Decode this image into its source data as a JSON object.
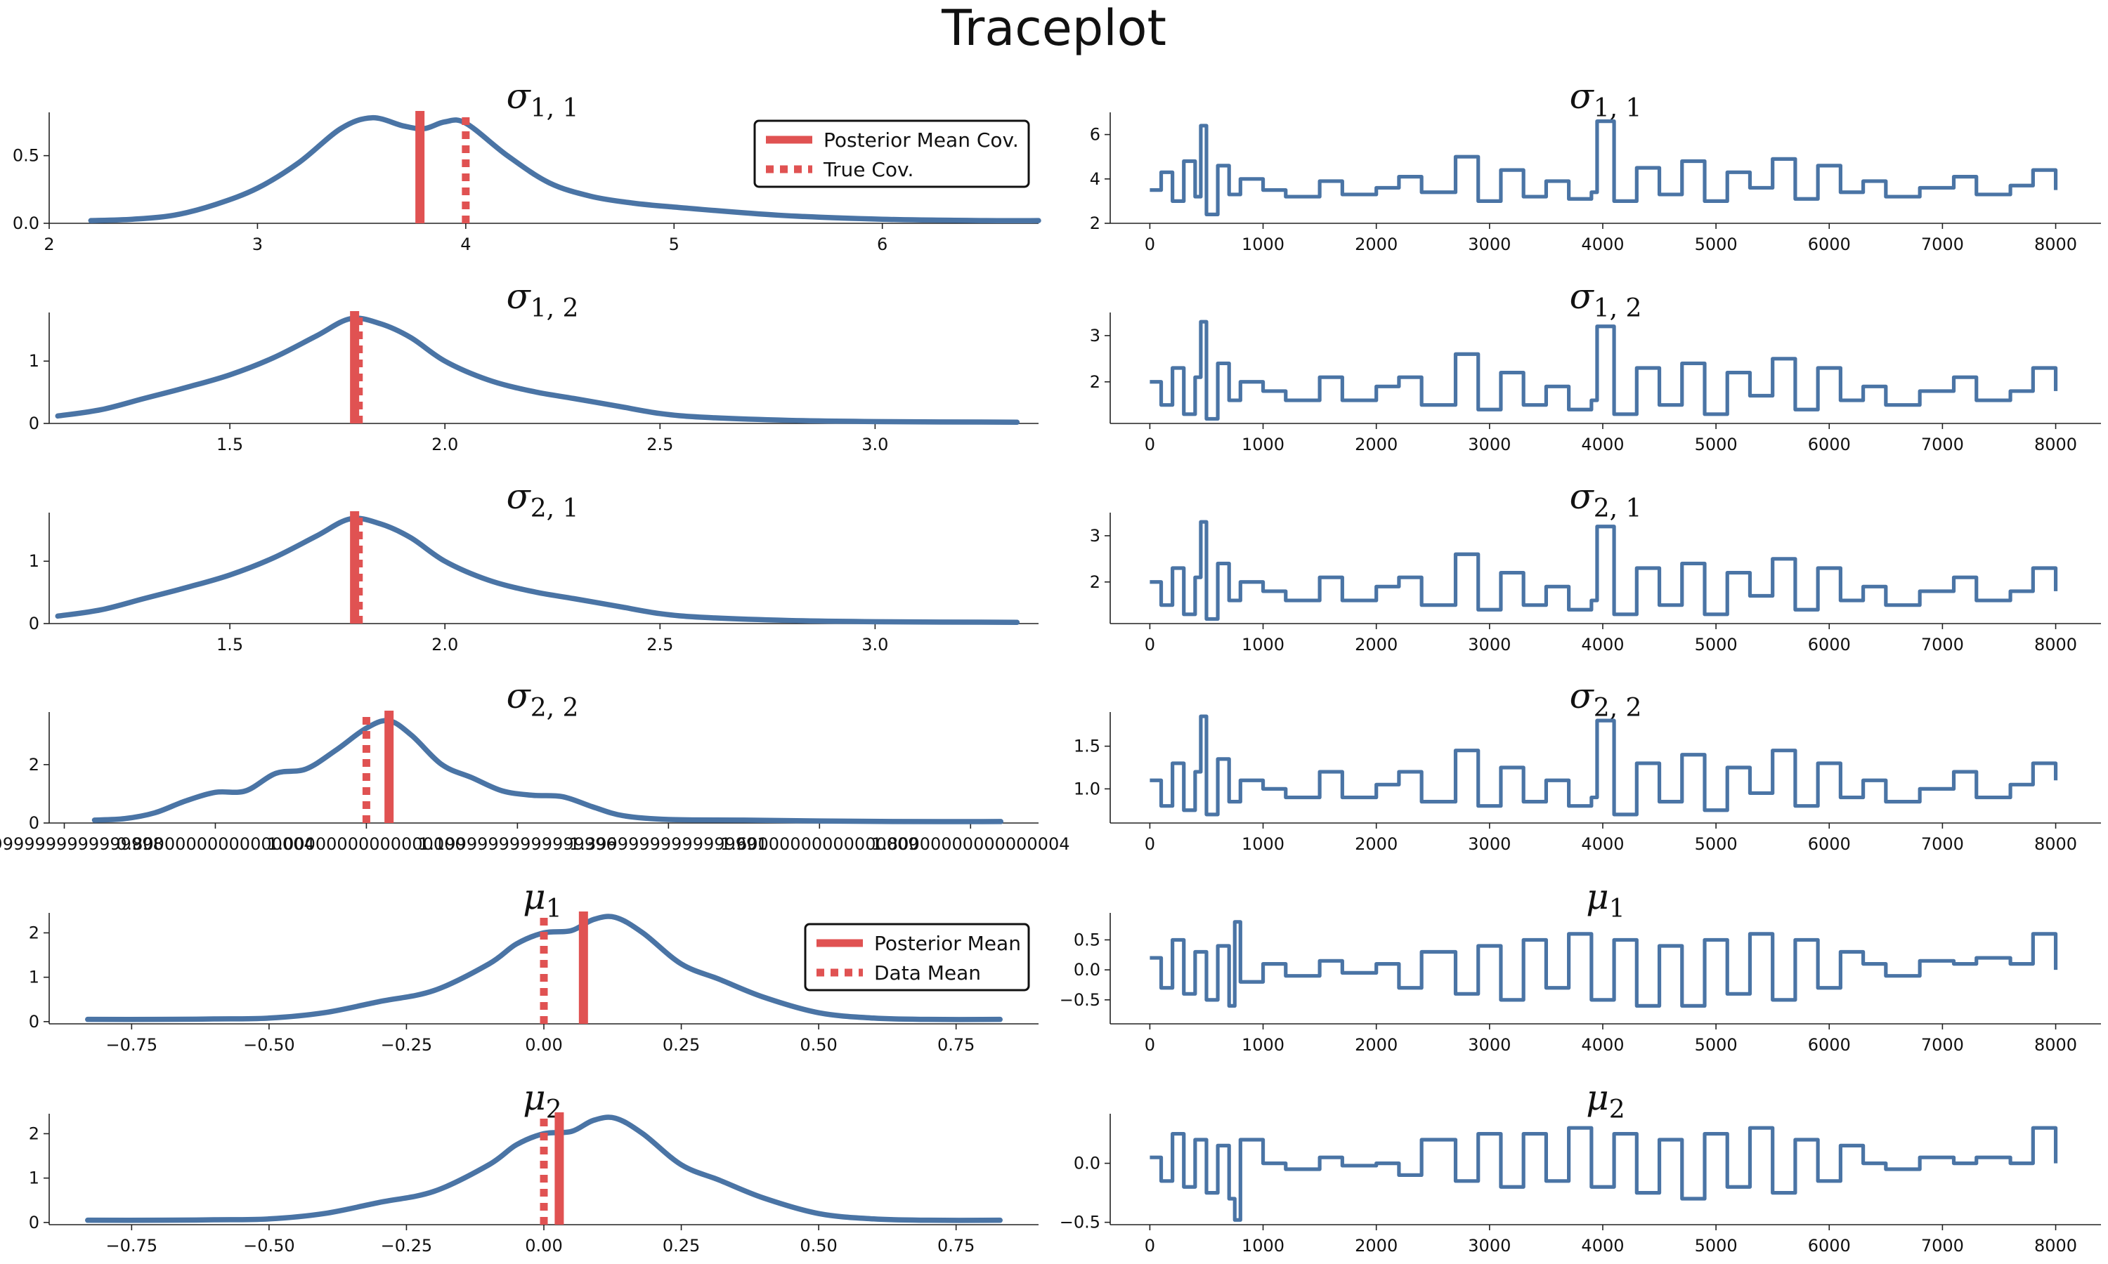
{
  "figure": {
    "title": "Traceplot",
    "colors": {
      "density": "#4a74a5",
      "trace": "#4a74a5",
      "reference": "#e05252"
    }
  },
  "chart_data": [
    {
      "type": "line",
      "title": "σ_{1,1}",
      "title_main": "σ",
      "title_sub": "1, 1",
      "xlim": [
        2.0,
        6.75
      ],
      "ylim": [
        0.0,
        0.82
      ],
      "xticks": [
        2,
        3,
        4,
        5,
        6
      ],
      "yticks": [
        0.0,
        0.5
      ],
      "x": [
        2.2,
        2.4,
        2.6,
        2.8,
        3.0,
        3.2,
        3.4,
        3.55,
        3.7,
        3.8,
        3.9,
        4.0,
        4.2,
        4.4,
        4.6,
        4.8,
        5.0,
        5.5,
        6.0,
        6.5,
        6.75
      ],
      "y": [
        0.02,
        0.03,
        0.06,
        0.14,
        0.26,
        0.45,
        0.7,
        0.78,
        0.72,
        0.7,
        0.75,
        0.74,
        0.5,
        0.3,
        0.2,
        0.15,
        0.12,
        0.06,
        0.03,
        0.02,
        0.02
      ],
      "reference_lines": [
        {
          "name": "Posterior Mean Cov.",
          "x": 3.78,
          "style": "solid"
        },
        {
          "name": "True Cov.",
          "x": 4.0,
          "style": "dotted"
        }
      ],
      "legend": [
        "Posterior Mean Cov.",
        "True Cov."
      ],
      "legend_position": "upper right",
      "grid": false
    },
    {
      "type": "line",
      "title": "σ_{1,2}",
      "title_main": "σ",
      "title_sub": "1, 2",
      "xlim": [
        1.08,
        3.38
      ],
      "ylim": [
        0.0,
        1.78
      ],
      "xticks": [
        1.5,
        2.0,
        2.5,
        3.0
      ],
      "yticks": [
        0,
        1
      ],
      "x": [
        1.1,
        1.2,
        1.3,
        1.4,
        1.5,
        1.6,
        1.7,
        1.78,
        1.85,
        1.92,
        2.0,
        2.1,
        2.2,
        2.3,
        2.4,
        2.5,
        2.6,
        2.8,
        3.0,
        3.33
      ],
      "y": [
        0.12,
        0.22,
        0.4,
        0.58,
        0.78,
        1.05,
        1.4,
        1.68,
        1.6,
        1.38,
        1.0,
        0.7,
        0.52,
        0.4,
        0.28,
        0.16,
        0.1,
        0.05,
        0.03,
        0.02
      ],
      "reference_lines": [
        {
          "name": "Posterior Mean Cov.",
          "x": 1.79,
          "style": "solid"
        },
        {
          "name": "True Cov.",
          "x": 1.8,
          "style": "dotted"
        }
      ],
      "grid": false
    },
    {
      "type": "line",
      "title": "σ_{2,1}",
      "title_main": "σ",
      "title_sub": "2, 1",
      "xlim": [
        1.08,
        3.38
      ],
      "ylim": [
        0.0,
        1.78
      ],
      "xticks": [
        1.5,
        2.0,
        2.5,
        3.0
      ],
      "yticks": [
        0,
        1
      ],
      "x": [
        1.1,
        1.2,
        1.3,
        1.4,
        1.5,
        1.6,
        1.7,
        1.78,
        1.85,
        1.92,
        2.0,
        2.1,
        2.2,
        2.3,
        2.4,
        2.5,
        2.6,
        2.8,
        3.0,
        3.33
      ],
      "y": [
        0.12,
        0.22,
        0.4,
        0.58,
        0.78,
        1.05,
        1.4,
        1.68,
        1.6,
        1.38,
        1.0,
        0.7,
        0.52,
        0.4,
        0.28,
        0.16,
        0.1,
        0.05,
        0.03,
        0.02
      ],
      "reference_lines": [
        {
          "name": "Posterior Mean Cov.",
          "x": 1.79,
          "style": "solid"
        },
        {
          "name": "True Cov.",
          "x": 1.8,
          "style": "dotted"
        }
      ],
      "grid": false
    },
    {
      "type": "line",
      "title": "σ_{2,2}",
      "title_main": "σ",
      "title_sub": "2, 2",
      "xlim": [
        0.58,
        1.89
      ],
      "ylim": [
        0.0,
        3.8
      ],
      "xticks": [
        0.6,
        0.8,
        1.0,
        1.2,
        1.4,
        1.6,
        1.8
      ],
      "yticks": [
        0,
        2
      ],
      "x": [
        0.64,
        0.68,
        0.72,
        0.76,
        0.8,
        0.84,
        0.88,
        0.92,
        0.96,
        1.0,
        1.03,
        1.06,
        1.1,
        1.14,
        1.18,
        1.22,
        1.26,
        1.3,
        1.34,
        1.4,
        1.5,
        1.6,
        1.7,
        1.84
      ],
      "y": [
        0.1,
        0.15,
        0.35,
        0.75,
        1.05,
        1.1,
        1.7,
        1.85,
        2.5,
        3.25,
        3.5,
        3.0,
        2.0,
        1.55,
        1.1,
        0.95,
        0.9,
        0.55,
        0.25,
        0.12,
        0.1,
        0.07,
        0.05,
        0.05
      ],
      "reference_lines": [
        {
          "name": "Posterior Mean Cov.",
          "x": 1.03,
          "style": "solid"
        },
        {
          "name": "True Cov.",
          "x": 1.0,
          "style": "dotted"
        }
      ],
      "grid": false
    },
    {
      "type": "line",
      "title": "μ_1",
      "title_main": "μ",
      "title_sub": "1",
      "xlim": [
        -0.9,
        0.9
      ],
      "ylim": [
        -0.05,
        2.45
      ],
      "xticks": [
        -0.75,
        -0.5,
        -0.25,
        0.0,
        0.25,
        0.5,
        0.75
      ],
      "yticks": [
        0,
        1,
        2
      ],
      "x": [
        -0.83,
        -0.7,
        -0.6,
        -0.5,
        -0.4,
        -0.3,
        -0.2,
        -0.1,
        -0.05,
        0.0,
        0.05,
        0.09,
        0.13,
        0.18,
        0.25,
        0.32,
        0.4,
        0.5,
        0.6,
        0.7,
        0.83
      ],
      "y": [
        0.05,
        0.05,
        0.06,
        0.08,
        0.2,
        0.45,
        0.7,
        1.3,
        1.75,
        2.0,
        2.05,
        2.3,
        2.35,
        2.0,
        1.3,
        0.95,
        0.55,
        0.2,
        0.08,
        0.05,
        0.05
      ],
      "reference_lines": [
        {
          "name": "Posterior Mean",
          "x": 0.072,
          "style": "solid"
        },
        {
          "name": "Data Mean",
          "x": 0.0,
          "style": "dotted"
        }
      ],
      "legend": [
        "Posterior Mean",
        "Data Mean"
      ],
      "legend_position": "upper right",
      "grid": false
    },
    {
      "type": "line",
      "title": "μ_2",
      "title_main": "μ",
      "title_sub": "2",
      "xlim": [
        -0.9,
        0.9
      ],
      "ylim": [
        -0.05,
        2.45
      ],
      "xticks": [
        -0.75,
        -0.5,
        -0.25,
        0.0,
        0.25,
        0.5,
        0.75
      ],
      "yticks": [
        0,
        1,
        2
      ],
      "x": [
        -0.83,
        -0.7,
        -0.6,
        -0.5,
        -0.4,
        -0.3,
        -0.2,
        -0.1,
        -0.05,
        0.0,
        0.05,
        0.09,
        0.13,
        0.18,
        0.25,
        0.32,
        0.4,
        0.5,
        0.6,
        0.7,
        0.83
      ],
      "y": [
        0.05,
        0.05,
        0.06,
        0.08,
        0.2,
        0.45,
        0.7,
        1.3,
        1.75,
        2.0,
        2.05,
        2.3,
        2.35,
        2.0,
        1.3,
        0.95,
        0.55,
        0.2,
        0.08,
        0.05,
        0.05
      ],
      "reference_lines": [
        {
          "name": "Posterior Mean",
          "x": 0.028,
          "style": "solid"
        },
        {
          "name": "Data Mean",
          "x": 0.0,
          "style": "dotted"
        }
      ],
      "grid": false
    },
    {
      "type": "line",
      "title": "σ_{1,1}",
      "title_main": "σ",
      "title_sub": "1, 1",
      "xlim": [
        -350,
        8400
      ],
      "ylim": [
        2.0,
        7.0
      ],
      "xticks": [
        0,
        1000,
        2000,
        3000,
        4000,
        5000,
        6000,
        7000,
        8000
      ],
      "yticks": [
        2,
        4,
        6
      ],
      "x": [
        0,
        100,
        200,
        300,
        400,
        450,
        500,
        600,
        700,
        800,
        1000,
        1200,
        1500,
        1700,
        2000,
        2200,
        2400,
        2700,
        2900,
        3100,
        3300,
        3500,
        3700,
        3900,
        3950,
        4100,
        4300,
        4500,
        4700,
        4900,
        5100,
        5300,
        5500,
        5700,
        5900,
        6100,
        6300,
        6500,
        6800,
        7100,
        7300,
        7600,
        7800,
        8000
      ],
      "y": [
        3.5,
        4.3,
        3.0,
        4.8,
        3.2,
        6.4,
        2.4,
        4.6,
        3.3,
        4.0,
        3.5,
        3.2,
        3.9,
        3.3,
        3.6,
        4.1,
        3.4,
        5.0,
        3.0,
        4.4,
        3.2,
        3.9,
        3.1,
        3.4,
        6.6,
        3.0,
        4.5,
        3.3,
        4.8,
        3.0,
        4.3,
        3.6,
        4.9,
        3.1,
        4.6,
        3.4,
        3.9,
        3.2,
        3.6,
        4.1,
        3.3,
        3.7,
        4.4,
        3.5
      ],
      "grid": false
    },
    {
      "type": "line",
      "title": "σ_{1,2}",
      "title_main": "σ",
      "title_sub": "1, 2",
      "xlim": [
        -350,
        8400
      ],
      "ylim": [
        1.1,
        3.5
      ],
      "xticks": [
        0,
        1000,
        2000,
        3000,
        4000,
        5000,
        6000,
        7000,
        8000
      ],
      "yticks": [
        2,
        3
      ],
      "x": [
        0,
        100,
        200,
        300,
        400,
        450,
        500,
        600,
        700,
        800,
        1000,
        1200,
        1500,
        1700,
        2000,
        2200,
        2400,
        2700,
        2900,
        3100,
        3300,
        3500,
        3700,
        3900,
        3950,
        4100,
        4300,
        4500,
        4700,
        4900,
        5100,
        5300,
        5500,
        5700,
        5900,
        6100,
        6300,
        6500,
        6800,
        7100,
        7300,
        7600,
        7800,
        8000
      ],
      "y": [
        2.0,
        1.5,
        2.3,
        1.3,
        2.1,
        3.3,
        1.2,
        2.4,
        1.6,
        2.0,
        1.8,
        1.6,
        2.1,
        1.6,
        1.9,
        2.1,
        1.5,
        2.6,
        1.4,
        2.2,
        1.5,
        1.9,
        1.4,
        1.6,
        3.2,
        1.3,
        2.3,
        1.5,
        2.4,
        1.3,
        2.2,
        1.7,
        2.5,
        1.4,
        2.3,
        1.6,
        1.9,
        1.5,
        1.8,
        2.1,
        1.6,
        1.8,
        2.3,
        1.8
      ],
      "grid": false
    },
    {
      "type": "line",
      "title": "σ_{2,1}",
      "title_main": "σ",
      "title_sub": "2, 1",
      "xlim": [
        -350,
        8400
      ],
      "ylim": [
        1.1,
        3.5
      ],
      "xticks": [
        0,
        1000,
        2000,
        3000,
        4000,
        5000,
        6000,
        7000,
        8000
      ],
      "yticks": [
        2,
        3
      ],
      "x": [
        0,
        100,
        200,
        300,
        400,
        450,
        500,
        600,
        700,
        800,
        1000,
        1200,
        1500,
        1700,
        2000,
        2200,
        2400,
        2700,
        2900,
        3100,
        3300,
        3500,
        3700,
        3900,
        3950,
        4100,
        4300,
        4500,
        4700,
        4900,
        5100,
        5300,
        5500,
        5700,
        5900,
        6100,
        6300,
        6500,
        6800,
        7100,
        7300,
        7600,
        7800,
        8000
      ],
      "y": [
        2.0,
        1.5,
        2.3,
        1.3,
        2.1,
        3.3,
        1.2,
        2.4,
        1.6,
        2.0,
        1.8,
        1.6,
        2.1,
        1.6,
        1.9,
        2.1,
        1.5,
        2.6,
        1.4,
        2.2,
        1.5,
        1.9,
        1.4,
        1.6,
        3.2,
        1.3,
        2.3,
        1.5,
        2.4,
        1.3,
        2.2,
        1.7,
        2.5,
        1.4,
        2.3,
        1.6,
        1.9,
        1.5,
        1.8,
        2.1,
        1.6,
        1.8,
        2.3,
        1.8
      ],
      "grid": false
    },
    {
      "type": "line",
      "title": "σ_{2,2}",
      "title_main": "σ",
      "title_sub": "2, 2",
      "xlim": [
        -350,
        8400
      ],
      "ylim": [
        0.6,
        1.9
      ],
      "xticks": [
        0,
        1000,
        2000,
        3000,
        4000,
        5000,
        6000,
        7000,
        8000
      ],
      "yticks": [
        1.0,
        1.5
      ],
      "x": [
        0,
        100,
        200,
        300,
        400,
        450,
        500,
        600,
        700,
        800,
        1000,
        1200,
        1500,
        1700,
        2000,
        2200,
        2400,
        2700,
        2900,
        3100,
        3300,
        3500,
        3700,
        3900,
        3950,
        4100,
        4300,
        4500,
        4700,
        4900,
        5100,
        5300,
        5500,
        5700,
        5900,
        6100,
        6300,
        6500,
        6800,
        7100,
        7300,
        7600,
        7800,
        8000
      ],
      "y": [
        1.1,
        0.8,
        1.3,
        0.75,
        1.2,
        1.85,
        0.7,
        1.35,
        0.85,
        1.1,
        1.0,
        0.9,
        1.2,
        0.9,
        1.05,
        1.2,
        0.85,
        1.45,
        0.8,
        1.25,
        0.85,
        1.1,
        0.8,
        0.9,
        1.8,
        0.7,
        1.3,
        0.85,
        1.4,
        0.75,
        1.25,
        0.95,
        1.45,
        0.8,
        1.3,
        0.9,
        1.1,
        0.85,
        1.0,
        1.2,
        0.9,
        1.05,
        1.3,
        1.1
      ],
      "grid": false
    },
    {
      "type": "line",
      "title": "μ_1",
      "title_main": "μ",
      "title_sub": "1",
      "xlim": [
        -350,
        8400
      ],
      "ylim": [
        -0.9,
        0.95
      ],
      "xticks": [
        0,
        1000,
        2000,
        3000,
        4000,
        5000,
        6000,
        7000,
        8000
      ],
      "yticks": [
        -0.5,
        0.0,
        0.5
      ],
      "x": [
        0,
        100,
        200,
        300,
        400,
        500,
        600,
        700,
        750,
        800,
        1000,
        1200,
        1500,
        1700,
        2000,
        2200,
        2400,
        2700,
        2900,
        3100,
        3300,
        3500,
        3700,
        3900,
        4100,
        4300,
        4500,
        4700,
        4900,
        5100,
        5300,
        5500,
        5700,
        5900,
        6100,
        6300,
        6500,
        6800,
        7100,
        7300,
        7600,
        7800,
        8000
      ],
      "y": [
        0.2,
        -0.3,
        0.5,
        -0.4,
        0.3,
        -0.5,
        0.4,
        -0.6,
        0.8,
        -0.2,
        0.1,
        -0.1,
        0.15,
        -0.05,
        0.1,
        -0.3,
        0.3,
        -0.4,
        0.4,
        -0.5,
        0.5,
        -0.3,
        0.6,
        -0.5,
        0.5,
        -0.6,
        0.4,
        -0.6,
        0.5,
        -0.4,
        0.6,
        -0.5,
        0.5,
        -0.3,
        0.3,
        0.1,
        -0.1,
        0.15,
        0.1,
        0.2,
        0.1,
        0.6,
        0.0
      ],
      "grid": false
    },
    {
      "type": "line",
      "title": "μ_2",
      "title_main": "μ",
      "title_sub": "2",
      "xlim": [
        -350,
        8400
      ],
      "ylim": [
        -0.52,
        0.42
      ],
      "xticks": [
        0,
        1000,
        2000,
        3000,
        4000,
        5000,
        6000,
        7000,
        8000
      ],
      "yticks": [
        -0.5,
        0.0
      ],
      "x": [
        0,
        100,
        200,
        300,
        400,
        500,
        600,
        700,
        750,
        800,
        1000,
        1200,
        1500,
        1700,
        2000,
        2200,
        2400,
        2700,
        2900,
        3100,
        3300,
        3500,
        3700,
        3900,
        4100,
        4300,
        4500,
        4700,
        4900,
        5100,
        5300,
        5500,
        5700,
        5900,
        6100,
        6300,
        6500,
        6800,
        7100,
        7300,
        7600,
        7800,
        8000
      ],
      "y": [
        0.05,
        -0.15,
        0.25,
        -0.2,
        0.2,
        -0.25,
        0.15,
        -0.3,
        -0.48,
        0.2,
        0.0,
        -0.05,
        0.05,
        -0.02,
        0.0,
        -0.1,
        0.2,
        -0.15,
        0.25,
        -0.2,
        0.25,
        -0.15,
        0.3,
        -0.2,
        0.25,
        -0.25,
        0.2,
        -0.3,
        0.25,
        -0.2,
        0.3,
        -0.25,
        0.2,
        -0.15,
        0.15,
        0.0,
        -0.05,
        0.05,
        0.0,
        0.05,
        0.0,
        0.3,
        0.0
      ],
      "grid": false
    }
  ]
}
